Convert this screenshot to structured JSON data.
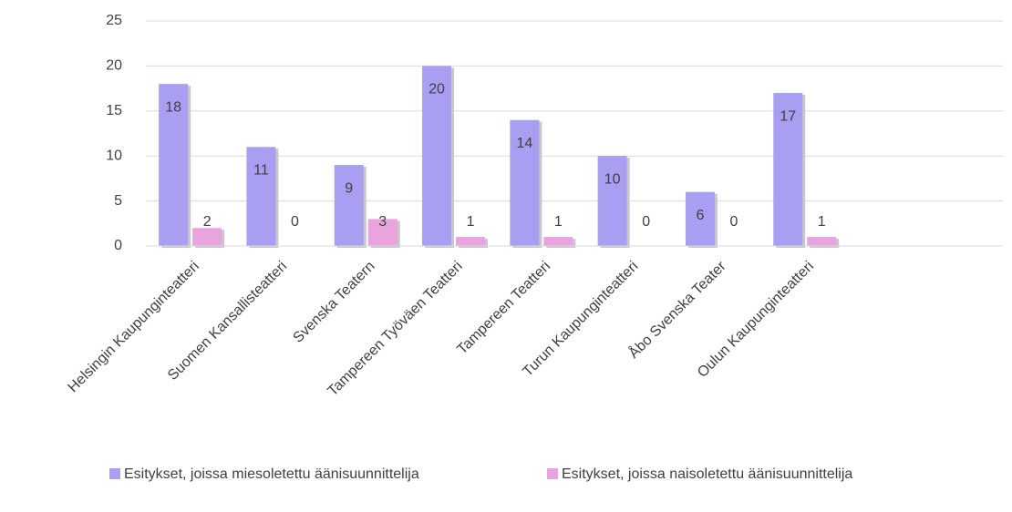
{
  "chart_data": {
    "type": "bar",
    "categories": [
      "Helsingin Kaupunginteatteri",
      "Suomen Kansallisteatteri",
      "Svenska Teatern",
      "Tampereen Työväen Teatteri",
      "Tampereen Teatteri",
      "Turun Kaupunginteatteri",
      "Åbo Svenska Teater",
      "Oulun Kaupunginteatteri"
    ],
    "series": [
      {
        "name": "Esitykset, joissa miesoletettu äänisuunnittelija",
        "color": "#a99ff2",
        "values": [
          18,
          11,
          9,
          20,
          14,
          10,
          6,
          17
        ]
      },
      {
        "name": "Esitykset, joissa naisoletettu äänisuunnittelija",
        "color": "#e9a3de",
        "values": [
          2,
          0,
          3,
          1,
          1,
          0,
          0,
          1
        ]
      }
    ],
    "ylim": [
      0,
      25
    ],
    "yticks": [
      0,
      5,
      10,
      15,
      20,
      25
    ],
    "grid": true,
    "legend": "bottom"
  }
}
